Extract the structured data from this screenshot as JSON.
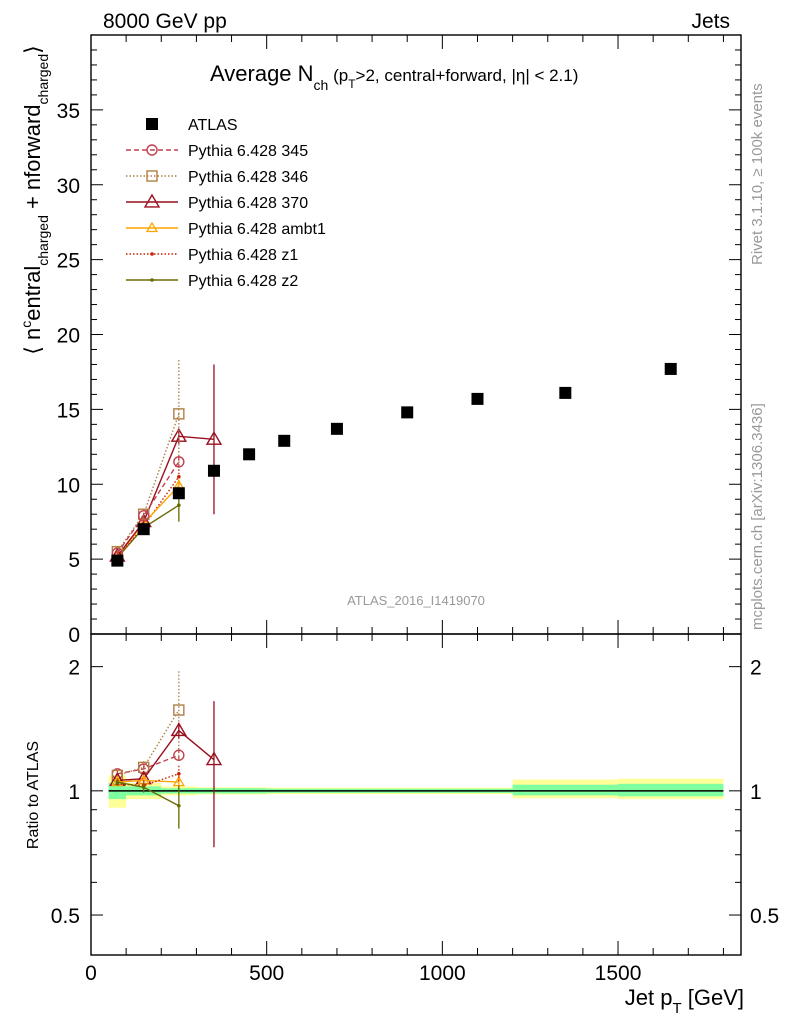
{
  "header": {
    "energy_label": "8000 GeV pp",
    "category_label": "Jets",
    "side_rivet": "Rivet 3.1.10, ≥ 100k events",
    "side_mcplots": "mcplots.cern.ch [arXiv:1306.3436]",
    "analysis_tag": "ATLAS_2016_I1419070"
  },
  "title": {
    "main": "Average N",
    "main_sub": "ch",
    "cond_open": " (p",
    "cond_sub": "T",
    "cond_rest": ">2, central+forward, |η| < 2.1)"
  },
  "ylabel": {
    "part1": "⟨ n",
    "sup": "c",
    "part2": "entral",
    "sub1": "charged",
    "part3": " + n",
    "part4": "forward",
    "sub2": "charged",
    "part5": "⟩"
  },
  "ratio_ylabel": "Ratio to ATLAS",
  "xlabel": {
    "main": "Jet p",
    "sub": "T",
    "unit": " [GeV]"
  },
  "colors": {
    "atlas": "#000000",
    "p345": "#c0404f",
    "p346": "#b07f45",
    "p370": "#990f1f",
    "ambt1": "#ffa500",
    "z1": "#cc1f00",
    "z2": "#6b6b00",
    "band_inner": "#7fff9f",
    "band_outer": "#ffff99"
  },
  "chart_data": [
    {
      "type": "scatter",
      "panel": "main",
      "xlim": [
        0,
        1850
      ],
      "ylim": [
        0,
        40
      ],
      "yticks": [
        0,
        5,
        10,
        15,
        20,
        25,
        30,
        35
      ],
      "xticks": [
        0,
        500,
        1000,
        1500
      ],
      "legend_position": "top-left",
      "series": [
        {
          "name": "ATLAS",
          "key": "atlas",
          "marker": "square",
          "line": "none",
          "x": [
            75,
            150,
            250,
            350,
            450,
            550,
            700,
            900,
            1100,
            1350,
            1650
          ],
          "y": [
            4.9,
            7.0,
            9.4,
            10.9,
            12.0,
            12.9,
            13.7,
            14.8,
            15.7,
            16.1,
            17.7
          ],
          "yerr": [
            0.1,
            0.1,
            0.15,
            0.15,
            0.1,
            0.1,
            0.1,
            0.1,
            0.1,
            0.15,
            0.2
          ]
        },
        {
          "name": "Pythia 6.428 345",
          "key": "p345",
          "marker": "circle",
          "line": "dashed",
          "x": [
            75,
            150,
            250
          ],
          "y": [
            5.4,
            7.9,
            11.5
          ],
          "yerr": [
            0.1,
            0.2,
            0.4
          ]
        },
        {
          "name": "Pythia 6.428 346",
          "key": "p346",
          "marker": "square-open",
          "line": "dotted",
          "x": [
            75,
            150,
            250
          ],
          "y": [
            5.5,
            8.0,
            14.7
          ],
          "yerr": [
            0.1,
            0.3,
            3.6
          ]
        },
        {
          "name": "Pythia 6.428 370",
          "key": "p370",
          "marker": "triangle",
          "line": "solid",
          "x": [
            75,
            150,
            250,
            350
          ],
          "y": [
            5.2,
            7.5,
            13.2,
            13.0
          ],
          "yerr": [
            0.1,
            0.3,
            0.5,
            5.0
          ]
        },
        {
          "name": "Pythia 6.428 ambt1",
          "key": "ambt1",
          "marker": "triangle-small",
          "line": "solid",
          "x": [
            75,
            150,
            250
          ],
          "y": [
            5.2,
            7.4,
            9.9
          ],
          "yerr": [
            0.1,
            0.2,
            0.4
          ]
        },
        {
          "name": "Pythia 6.428 z1",
          "key": "z1",
          "marker": "dot",
          "line": "dotted",
          "x": [
            75,
            150,
            250
          ],
          "y": [
            5.1,
            7.2,
            10.5
          ],
          "yerr": [
            0.1,
            0.2,
            0.5
          ]
        },
        {
          "name": "Pythia 6.428 z2",
          "key": "z2",
          "marker": "dot",
          "line": "solid",
          "x": [
            75,
            150,
            250
          ],
          "y": [
            5.1,
            7.1,
            8.6
          ],
          "yerr": [
            0.1,
            0.2,
            1.1
          ]
        }
      ]
    },
    {
      "type": "line",
      "panel": "ratio",
      "xlim": [
        0,
        1850
      ],
      "ylim": [
        0.4,
        2.4
      ],
      "yscale": "log",
      "yticks": [
        0.5,
        1,
        2
      ],
      "xticks": [
        0,
        500,
        1000,
        1500
      ],
      "reference_line": 1,
      "bands": {
        "bins": [
          [
            50,
            100
          ],
          [
            100,
            200
          ],
          [
            200,
            300
          ],
          [
            300,
            400
          ],
          [
            400,
            500
          ],
          [
            500,
            600
          ],
          [
            600,
            800
          ],
          [
            800,
            1000
          ],
          [
            1000,
            1200
          ],
          [
            1200,
            1500
          ],
          [
            1500,
            1800
          ]
        ],
        "inner": [
          [
            0.955,
            1.045
          ],
          [
            0.975,
            1.025
          ],
          [
            0.985,
            1.015
          ],
          [
            0.985,
            1.015
          ],
          [
            0.985,
            1.015
          ],
          [
            0.988,
            1.012
          ],
          [
            0.988,
            1.012
          ],
          [
            0.988,
            1.012
          ],
          [
            0.988,
            1.012
          ],
          [
            0.975,
            1.035
          ],
          [
            0.97,
            1.04
          ]
        ],
        "outer": [
          [
            0.91,
            1.09
          ],
          [
            0.955,
            1.045
          ],
          [
            0.975,
            1.025
          ],
          [
            0.98,
            1.02
          ],
          [
            0.98,
            1.02
          ],
          [
            0.982,
            1.018
          ],
          [
            0.982,
            1.018
          ],
          [
            0.982,
            1.018
          ],
          [
            0.982,
            1.018
          ],
          [
            0.96,
            1.065
          ],
          [
            0.955,
            1.07
          ]
        ]
      },
      "series": [
        {
          "name": "Pythia 6.428 345",
          "key": "p345",
          "marker": "circle",
          "line": "dashed",
          "x": [
            75,
            150,
            250
          ],
          "y": [
            1.1,
            1.13,
            1.22
          ],
          "yerr": [
            0.02,
            0.03,
            0.05
          ]
        },
        {
          "name": "Pythia 6.428 346",
          "key": "p346",
          "marker": "square-open",
          "line": "dotted",
          "x": [
            75,
            150,
            250
          ],
          "y": [
            1.09,
            1.14,
            1.57
          ],
          "yerr": [
            0.02,
            0.04,
            0.38
          ]
        },
        {
          "name": "Pythia 6.428 370",
          "key": "p370",
          "marker": "triangle",
          "line": "solid",
          "x": [
            75,
            150,
            250,
            350
          ],
          "y": [
            1.06,
            1.07,
            1.4,
            1.19
          ],
          "yerr": [
            0.02,
            0.04,
            0.06,
            0.46
          ]
        },
        {
          "name": "Pythia 6.428 ambt1",
          "key": "ambt1",
          "marker": "triangle-small",
          "line": "solid",
          "x": [
            75,
            150,
            250
          ],
          "y": [
            1.05,
            1.06,
            1.05
          ],
          "yerr": [
            0.02,
            0.03,
            0.04
          ]
        },
        {
          "name": "Pythia 6.428 z1",
          "key": "z1",
          "marker": "dot",
          "line": "dotted",
          "x": [
            75,
            150,
            250
          ],
          "y": [
            1.04,
            1.03,
            1.1
          ],
          "yerr": [
            0.02,
            0.03,
            0.05
          ]
        },
        {
          "name": "Pythia 6.428 z2",
          "key": "z2",
          "marker": "dot",
          "line": "solid",
          "x": [
            75,
            150,
            250
          ],
          "y": [
            1.05,
            1.02,
            0.92
          ],
          "yerr": [
            0.02,
            0.03,
            0.11
          ]
        }
      ]
    }
  ]
}
